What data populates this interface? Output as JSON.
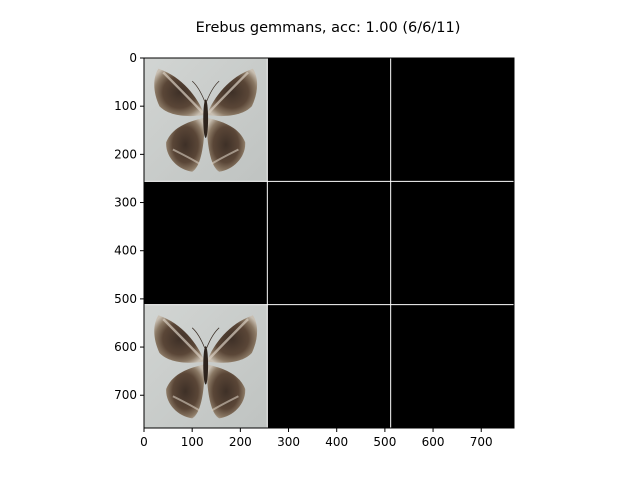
{
  "chart_data": {
    "type": "image-grid",
    "title": "Erebus gemmans, acc: 1.00 (6/6/11)",
    "grid": {
      "rows": 3,
      "cols": 3,
      "cell_size": 256
    },
    "xlim": [
      0,
      768
    ],
    "ylim": [
      768,
      0
    ],
    "x_ticks": [
      0,
      100,
      200,
      300,
      400,
      500,
      600,
      700
    ],
    "y_ticks": [
      0,
      100,
      200,
      300,
      400,
      500,
      600,
      700
    ],
    "cells": [
      {
        "row": 0,
        "col": 0,
        "content": "butterfly-image"
      },
      {
        "row": 0,
        "col": 1,
        "content": "blank"
      },
      {
        "row": 0,
        "col": 2,
        "content": "blank"
      },
      {
        "row": 1,
        "col": 0,
        "content": "blank"
      },
      {
        "row": 1,
        "col": 1,
        "content": "blank"
      },
      {
        "row": 1,
        "col": 2,
        "content": "blank"
      },
      {
        "row": 2,
        "col": 0,
        "content": "butterfly-image"
      },
      {
        "row": 2,
        "col": 1,
        "content": "blank"
      },
      {
        "row": 2,
        "col": 2,
        "content": "blank"
      }
    ],
    "colors": {
      "blank": "#000000",
      "photo_background": "#c9cdcb",
      "wing_dark": "#4c3b30",
      "wing_light": "#b9ab98",
      "separator": "#ffffff"
    }
  }
}
